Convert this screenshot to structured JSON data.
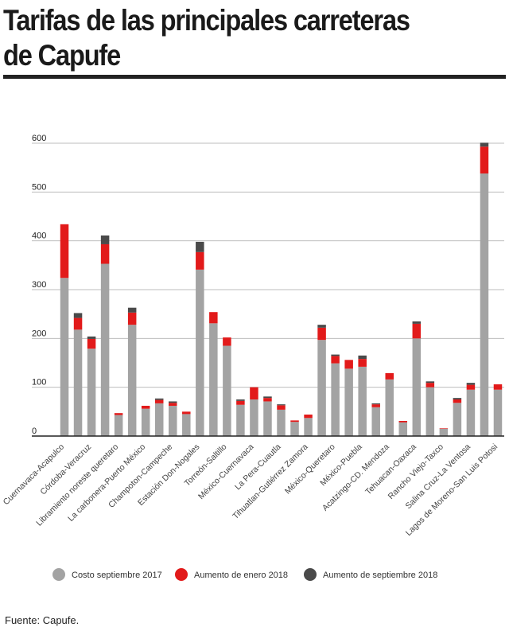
{
  "header": {
    "title": "Tarifas de las principales carreteras de Capufe"
  },
  "footer": {
    "source": "Fuente: Capufe."
  },
  "colors": {
    "base": "#a3a3a3",
    "jan_2018": "#e21a1a",
    "sep_2018": "#4a4a4a",
    "grid": "#bdbdbd",
    "axis": "#222222"
  },
  "chart_data": {
    "type": "bar",
    "stacked": true,
    "ylim": [
      0,
      600
    ],
    "yticks": [
      0,
      100,
      200,
      300,
      400,
      500,
      600
    ],
    "grid": true,
    "legend_position": "bottom",
    "categories": [
      "Cuernavaca-Acapulco",
      "Córdoba-Veracruz",
      "Libramiento noreste queretaro",
      "La carbonera-Puerto México",
      "Champoton-Campeche",
      "Estación Don-Nogales",
      "Torreón-Saltillo",
      "México-Cuernavaca",
      "La Pera-Cuautla",
      "Tihuatlan-Gutiérrez Zamora",
      "México-Queretaro",
      "México-Puebla",
      "Acatzingo-CD. Mendoza",
      "Tehuacan-Oaxaca",
      "Rancho Viejo-Taxco",
      "Salina Cruz-La Ventosa",
      "Lagos de Moreno-San Luis Potosi"
    ],
    "bars": [
      {
        "label": "Cuernavaca-Acapulco",
        "values": [
          324,
          110,
          0
        ]
      },
      {
        "label": "",
        "values": [
          218,
          24,
          10
        ]
      },
      {
        "label": "Córdoba-Veracruz",
        "values": [
          179,
          20,
          5
        ]
      },
      {
        "label": "",
        "values": [
          353,
          40,
          18
        ]
      },
      {
        "label": "Libramiento noreste queretaro",
        "values": [
          43,
          4,
          0
        ]
      },
      {
        "label": "",
        "values": [
          228,
          25,
          10
        ]
      },
      {
        "label": "La carbonera-Puerto México",
        "values": [
          56,
          6,
          0
        ]
      },
      {
        "label": "",
        "values": [
          67,
          7,
          3
        ]
      },
      {
        "label": "Champoton-Campeche",
        "values": [
          62,
          6,
          3
        ]
      },
      {
        "label": "",
        "values": [
          45,
          5,
          0
        ]
      },
      {
        "label": "Estación Don-Nogales",
        "values": [
          341,
          36,
          21
        ]
      },
      {
        "label": "",
        "values": [
          231,
          23,
          0
        ]
      },
      {
        "label": "Torreón-Saltillo",
        "values": [
          185,
          17,
          0
        ]
      },
      {
        "label": "",
        "values": [
          64,
          8,
          3
        ]
      },
      {
        "label": "México-Cuernavaca",
        "values": [
          75,
          25,
          0
        ]
      },
      {
        "label": "",
        "values": [
          71,
          7,
          3
        ]
      },
      {
        "label": "La Pera-Cuautla",
        "values": [
          54,
          9,
          2
        ]
      },
      {
        "label": "",
        "values": [
          29,
          3,
          0
        ]
      },
      {
        "label": "Tihuatlan-Gutiérrez Zamora",
        "values": [
          37,
          7,
          0
        ]
      },
      {
        "label": "",
        "values": [
          197,
          25,
          6
        ]
      },
      {
        "label": "México-Queretaro",
        "values": [
          149,
          15,
          3
        ]
      },
      {
        "label": "",
        "values": [
          138,
          18,
          0
        ]
      },
      {
        "label": "México-Puebla",
        "values": [
          142,
          16,
          7
        ]
      },
      {
        "label": "",
        "values": [
          59,
          6,
          2
        ]
      },
      {
        "label": "Acatzingo-CD. Mendoza",
        "values": [
          116,
          13,
          0
        ]
      },
      {
        "label": "",
        "values": [
          28,
          3,
          0
        ]
      },
      {
        "label": "Tehuacan-Oaxaca",
        "values": [
          200,
          30,
          5
        ]
      },
      {
        "label": "",
        "values": [
          100,
          9,
          3
        ]
      },
      {
        "label": "Rancho Viejo-Taxco",
        "values": [
          15,
          1,
          0
        ]
      },
      {
        "label": "",
        "values": [
          68,
          7,
          3
        ]
      },
      {
        "label": "Salina Cruz-La Ventosa",
        "values": [
          95,
          10,
          4
        ]
      },
      {
        "label": "",
        "values": [
          538,
          55,
          8
        ]
      },
      {
        "label": "Lagos de Moreno-San Luis Potosi",
        "values": [
          95,
          11,
          0
        ]
      }
    ],
    "series": [
      {
        "name": "Costo septiembre 2017"
      },
      {
        "name": "Aumento de enero 2018"
      },
      {
        "name": "Aumento de septiembre 2018"
      }
    ]
  }
}
